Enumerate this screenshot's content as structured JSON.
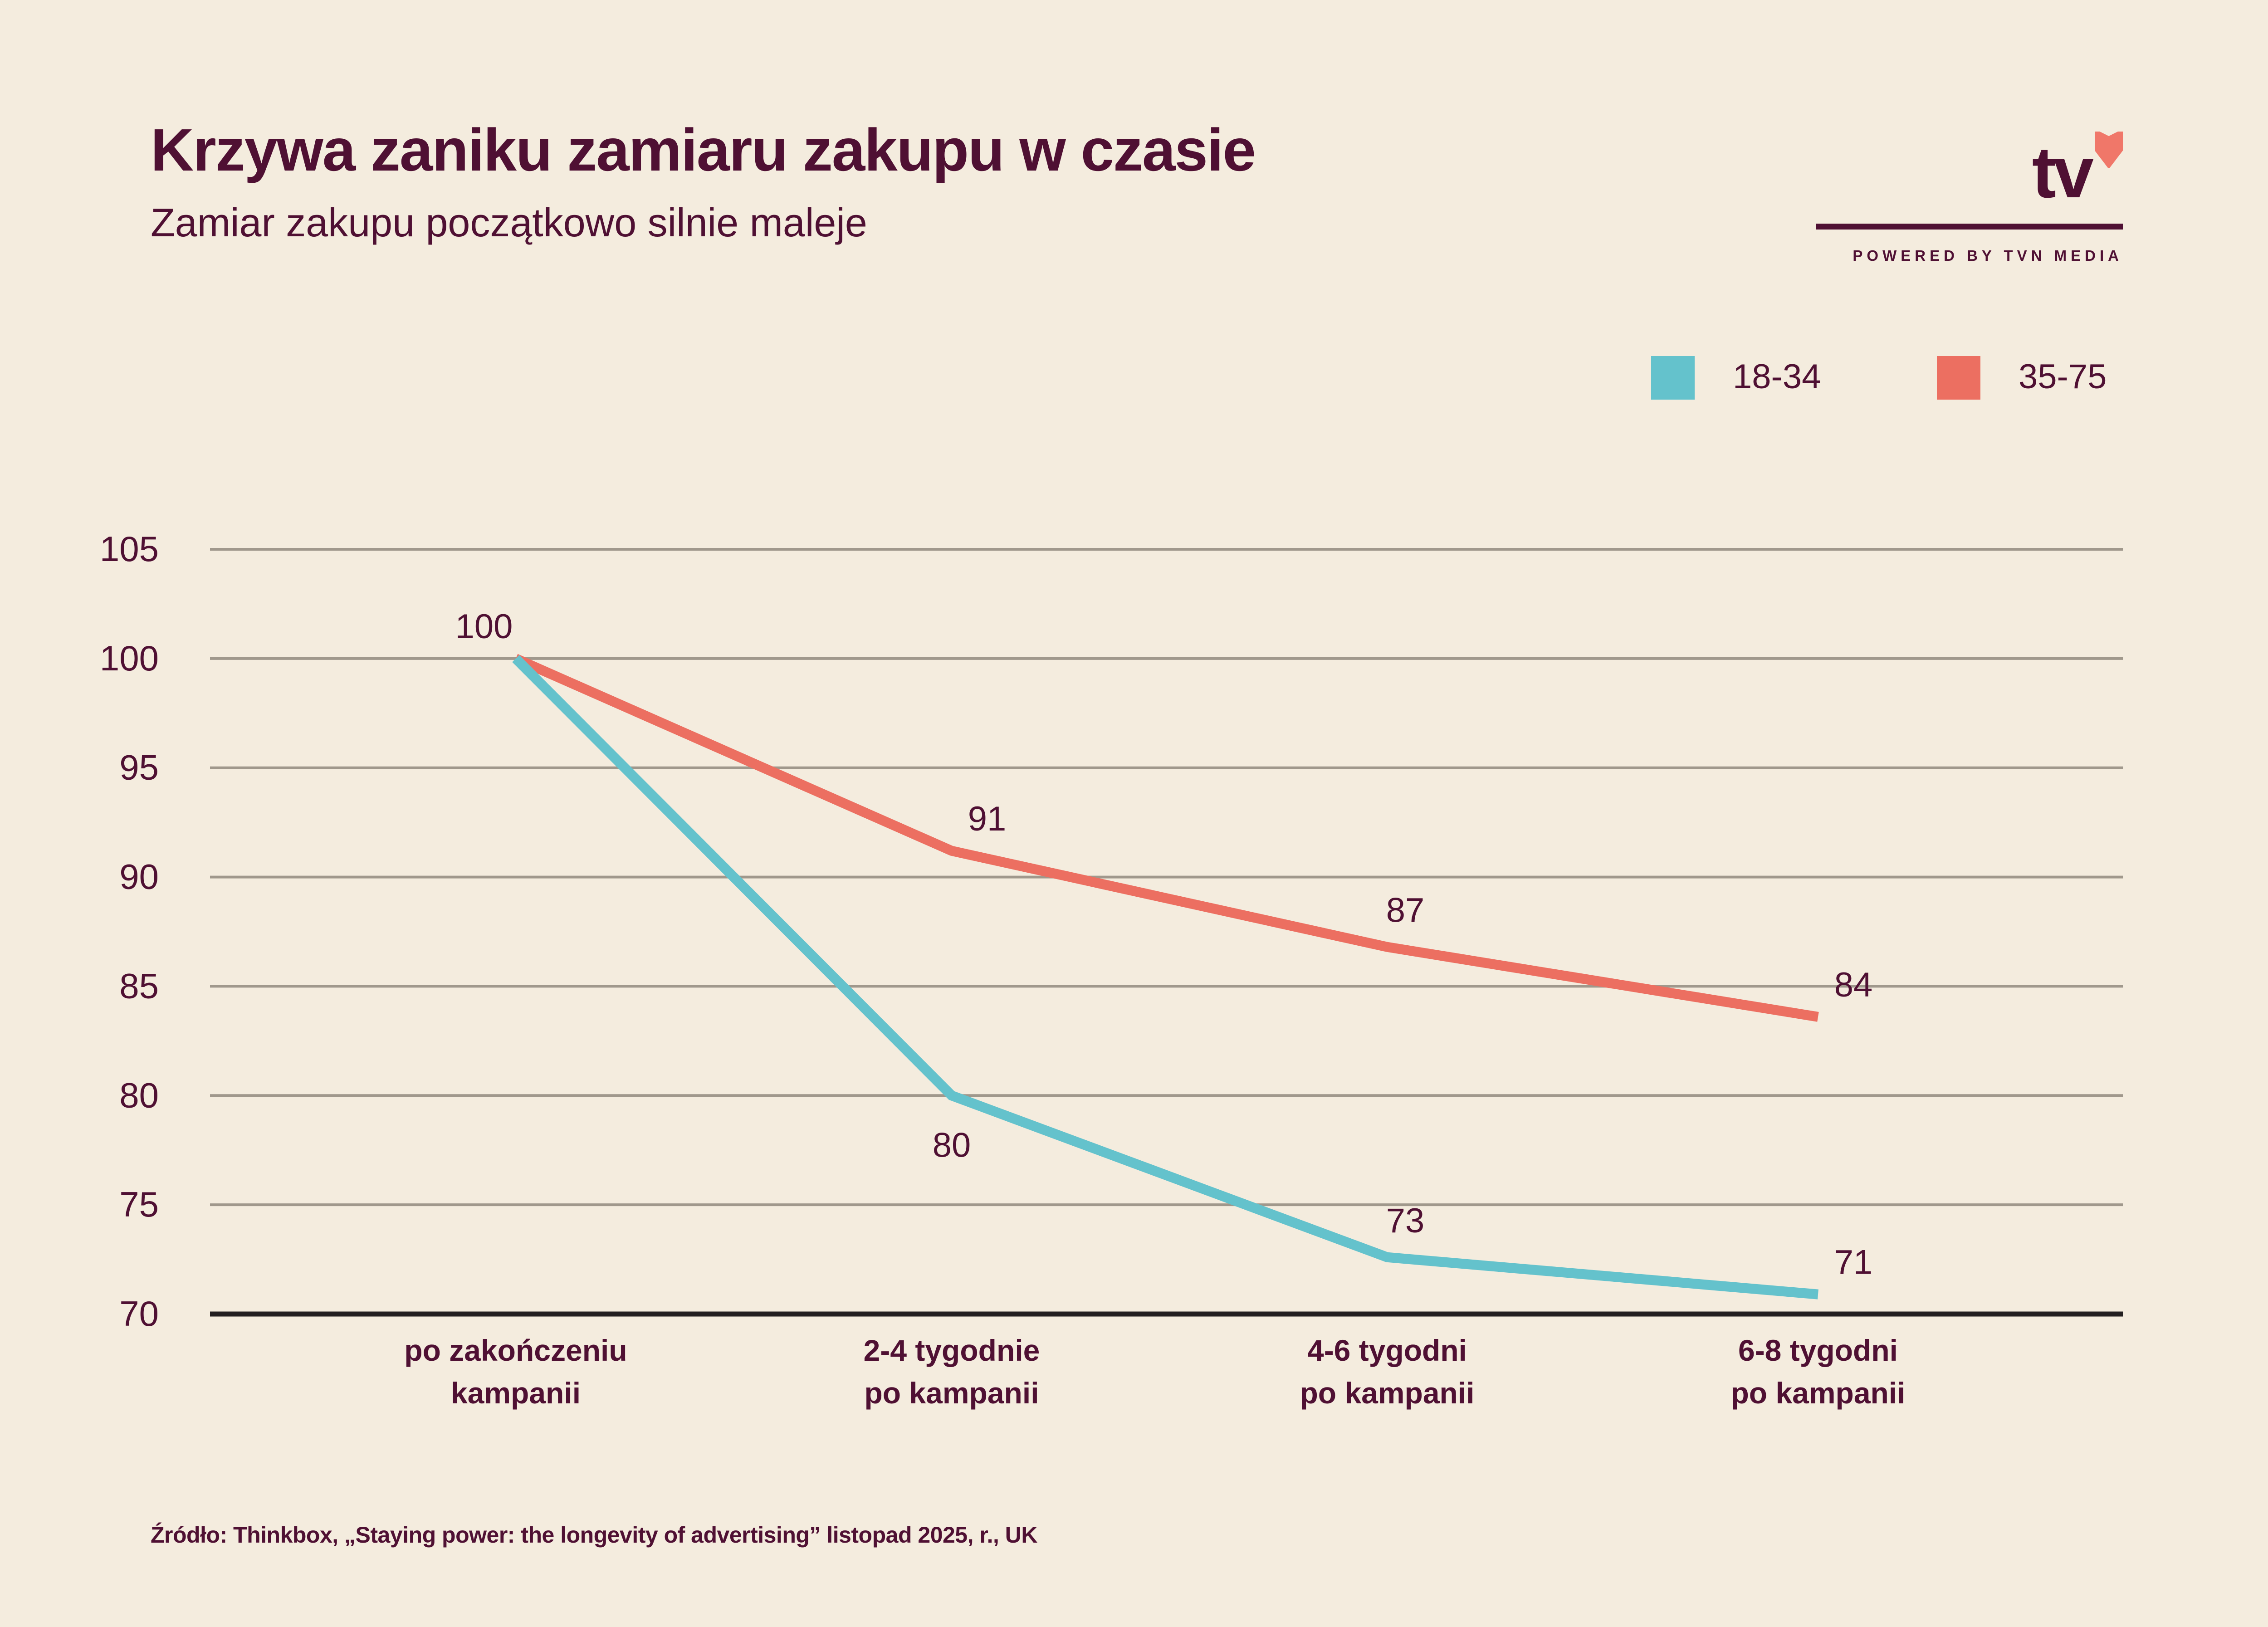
{
  "header": {
    "title": "Krzywa zaniku zamiaru zakupu w czasie",
    "subtitle": "Zamiar zakupu początkowo silnie maleje"
  },
  "logo": {
    "wordmark": "tv",
    "icon": "heart-icon",
    "tagline": "POWERED BY TVN MEDIA",
    "colors": {
      "wordmark": "#4F1033",
      "heart": "#F07769"
    }
  },
  "footer": {
    "source": "Źródło: Thinkbox, „Staying power: the longevity of advertising” listopad 2025, r., UK"
  },
  "chart_data": {
    "type": "line",
    "title": "Krzywa zaniku zamiaru zakupu w czasie",
    "subtitle": "Zamiar zakupu początkowo silnie maleje",
    "xlabel": "",
    "ylabel": "",
    "categories": [
      [
        "po zakończeniu",
        "kampanii"
      ],
      [
        "2-4 tygodnie",
        "po kampanii"
      ],
      [
        "4-6 tygodni",
        "po kampanii"
      ],
      [
        "6-8 tygodni",
        "po kampanii"
      ]
    ],
    "series": [
      {
        "name": "18-34",
        "color": "#64C2CC",
        "values": [
          100,
          80,
          72.6,
          70.9
        ],
        "labels": [
          "",
          "80",
          "73",
          "71"
        ],
        "label_position": [
          "none",
          "below",
          "above",
          "above-right"
        ]
      },
      {
        "name": "35-75",
        "color": "#EC6F61",
        "values": [
          100,
          91.2,
          86.8,
          83.6
        ],
        "labels": [
          "100",
          "91",
          "87",
          "84"
        ],
        "label_position": [
          "above-left",
          "above-right",
          "above",
          "above-right"
        ]
      }
    ],
    "ylim": [
      70,
      105
    ],
    "yticks": [
      105,
      100,
      95,
      90,
      85,
      80,
      75,
      70
    ],
    "grid": true,
    "grid_color": "#A0988C",
    "axis_color": "#231F20",
    "legend": {
      "position": "top-right",
      "entries": [
        "18-34",
        "35-75"
      ]
    }
  }
}
